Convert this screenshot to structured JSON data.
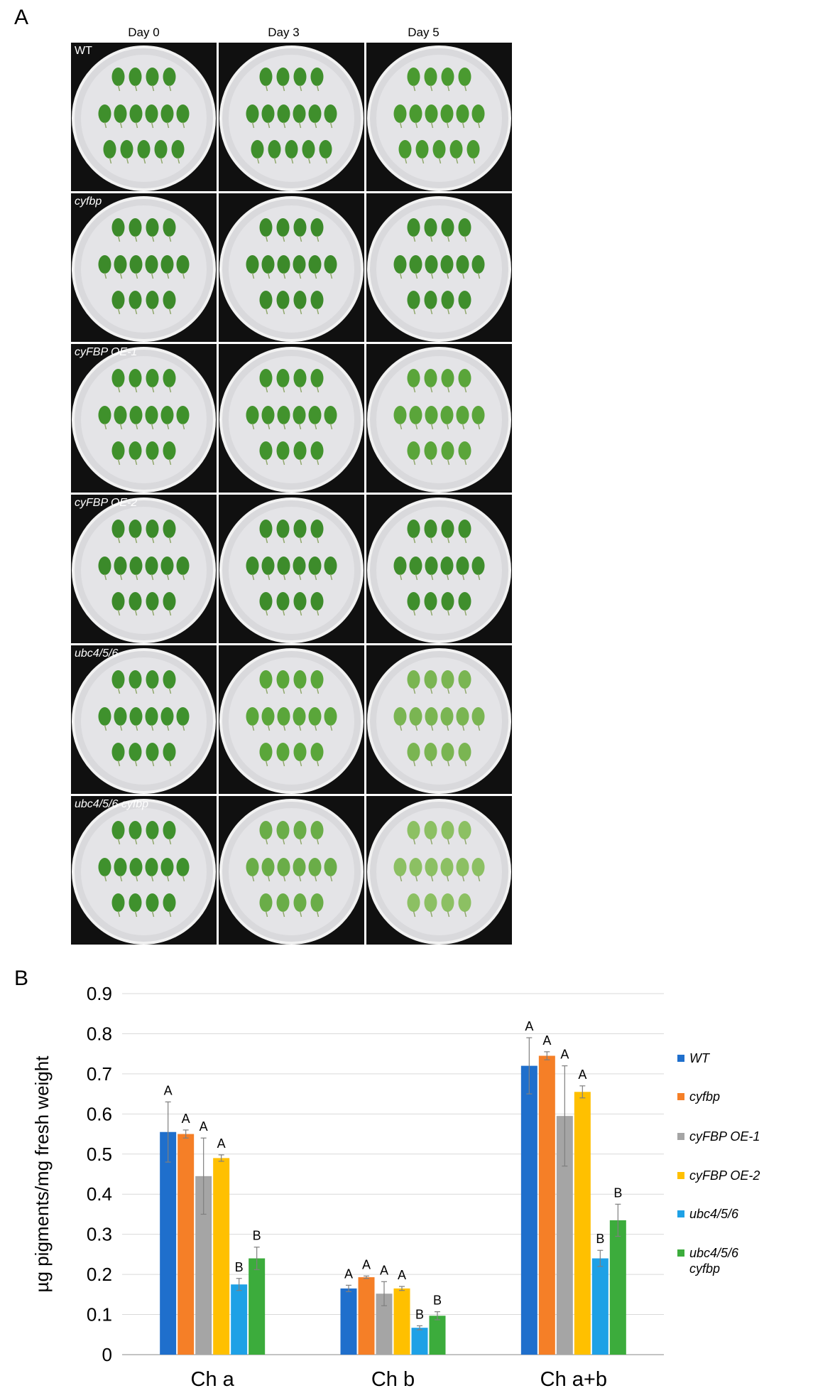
{
  "panel_a": {
    "label": "A",
    "columns": [
      "Day 0",
      "Day 3",
      "Day 5"
    ],
    "rows": [
      "WT",
      "cyfbp",
      "cyFBP OE-1",
      "cyFBP OE-2",
      "ubc4/5/6",
      "ubc4/5/6 cyfbp"
    ]
  },
  "panel_b": {
    "label": "B"
  },
  "chart_data": {
    "type": "bar",
    "ylabel": "µg pigments/mg fresh weight",
    "xlabel": "",
    "ylim": [
      0,
      0.9
    ],
    "yticks": [
      "0",
      "0.1",
      "0.2",
      "0.3",
      "0.4",
      "0.5",
      "0.6",
      "0.7",
      "0.8",
      "0.9"
    ],
    "grid": true,
    "legend_position": "right",
    "categories": [
      "Ch a",
      "Ch b",
      "Ch a+b"
    ],
    "series": [
      {
        "name": "WT",
        "color": "#1f6fcc",
        "values": [
          0.555,
          0.165,
          0.72
        ],
        "errors": [
          0.075,
          0.008,
          0.07
        ],
        "letters": [
          "A",
          "A",
          "A"
        ]
      },
      {
        "name": "cyfbp",
        "color": "#f57f27",
        "values": [
          0.55,
          0.193,
          0.745
        ],
        "errors": [
          0.01,
          0.003,
          0.01
        ],
        "letters": [
          "A",
          "A",
          "A"
        ]
      },
      {
        "name": "cyFBP OE-1",
        "color": "#a5a5a5",
        "values": [
          0.445,
          0.152,
          0.595
        ],
        "errors": [
          0.095,
          0.03,
          0.125
        ],
        "letters": [
          "A",
          "A",
          "A"
        ]
      },
      {
        "name": "cyFBP OE-2",
        "color": "#ffc000",
        "values": [
          0.49,
          0.165,
          0.655
        ],
        "errors": [
          0.008,
          0.005,
          0.015
        ],
        "letters": [
          "A",
          "A",
          "A"
        ]
      },
      {
        "name": "ubc4/5/6",
        "color": "#1ea1e6",
        "values": [
          0.175,
          0.067,
          0.24
        ],
        "errors": [
          0.015,
          0.005,
          0.02
        ],
        "letters": [
          "B",
          "B",
          "B"
        ]
      },
      {
        "name": "ubc4/5/6 cyfbp",
        "color": "#3cac3c",
        "values": [
          0.24,
          0.097,
          0.335
        ],
        "errors": [
          0.028,
          0.01,
          0.04
        ],
        "letters": [
          "B",
          "B",
          "B"
        ]
      }
    ]
  }
}
